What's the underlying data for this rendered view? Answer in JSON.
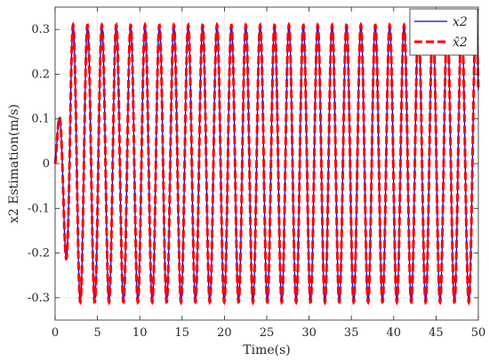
{
  "chart_data": {
    "type": "line",
    "xlabel": "Time(s)",
    "ylabel": "x2 Estimation(m/s)",
    "xlim": [
      0,
      50
    ],
    "ylim": [
      -0.35,
      0.35
    ],
    "xticks": [
      0,
      5,
      10,
      15,
      20,
      25,
      30,
      35,
      40,
      45,
      50
    ],
    "yticks": [
      -0.3,
      -0.2,
      -0.1,
      0,
      0.1,
      0.2,
      0.3
    ],
    "grid": true,
    "legend_position": "top-right",
    "series": [
      {
        "name": "x2",
        "color": "#0000ff",
        "style": "solid",
        "amplitude": 0.31,
        "period": 1.7
      },
      {
        "name": "x̂2",
        "color": "#ff0000",
        "style": "dashed",
        "amplitude": 0.31,
        "period": 1.7
      }
    ]
  }
}
